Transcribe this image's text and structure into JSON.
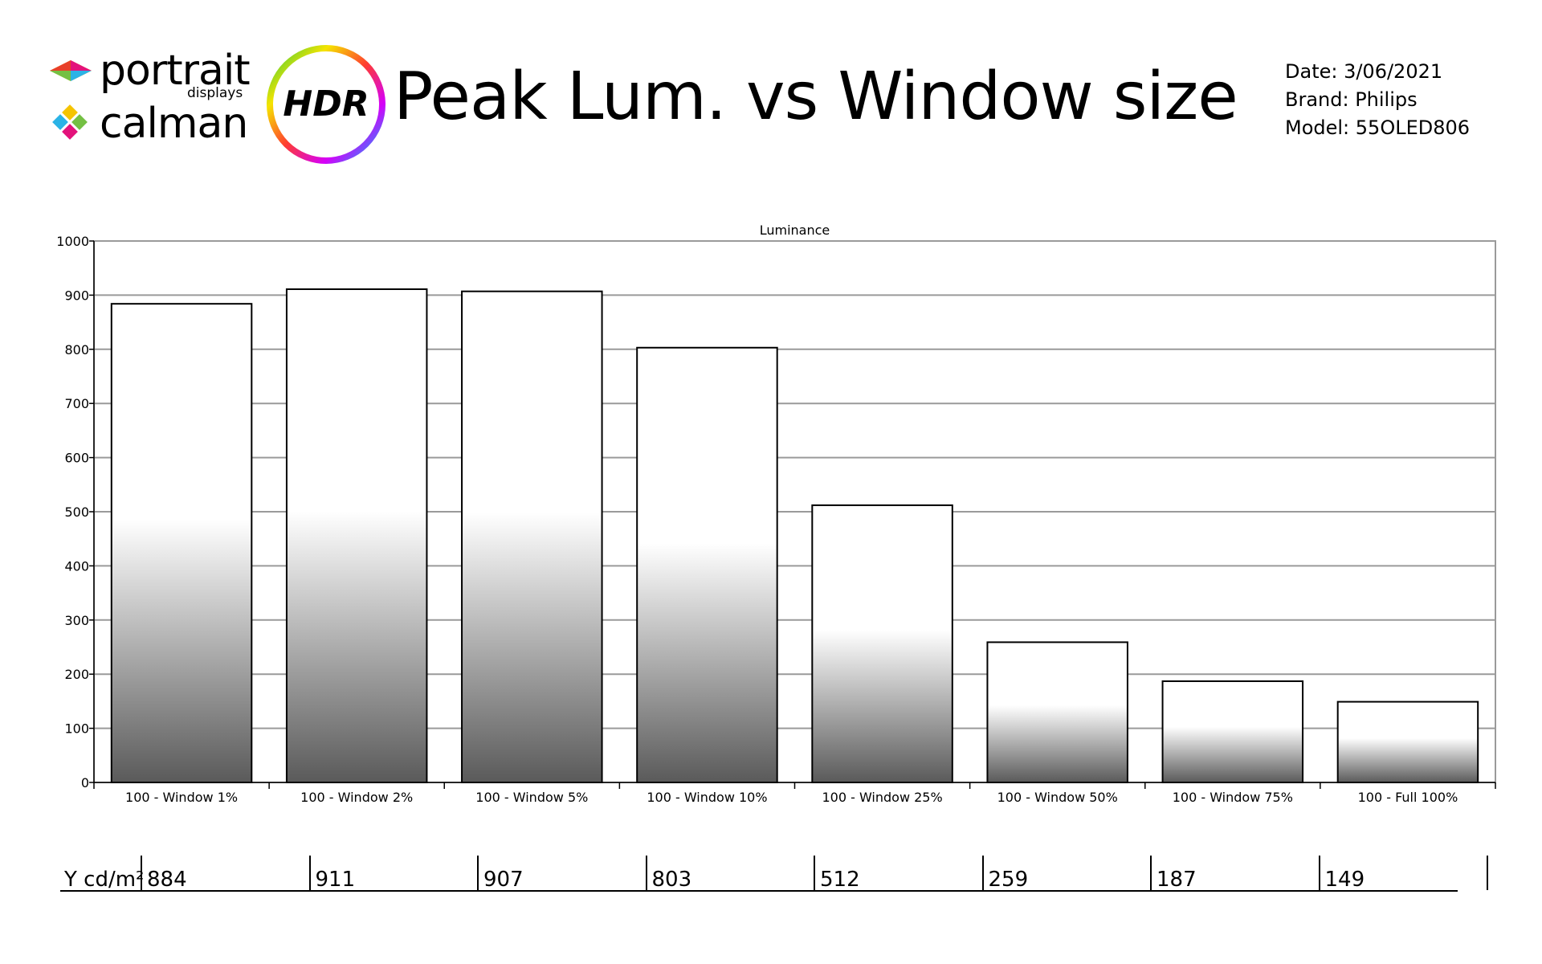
{
  "brand": {
    "portrait_word": "portrait",
    "portrait_sub": "displays",
    "calman_word": "calman",
    "hdr_badge": "HDR"
  },
  "header": {
    "title": "Peak Lum. vs Window size",
    "date": "Date: 3/06/2021",
    "brand": "Brand: Philips",
    "model": "Model: 55OLED806"
  },
  "chart_data": {
    "type": "bar",
    "title": "Luminance",
    "xlabel": "",
    "ylabel": "",
    "ylim": [
      0,
      1000
    ],
    "yticks": [
      0,
      100,
      200,
      300,
      400,
      500,
      600,
      700,
      800,
      900,
      1000
    ],
    "grid": true,
    "categories": [
      "100 - Window  1%",
      "100 - Window  2%",
      "100 - Window  5%",
      "100 - Window 10%",
      "100 - Window 25%",
      "100 - Window 50%",
      "100 - Window 75%",
      "100 - Full  100%"
    ],
    "values": [
      884,
      911,
      907,
      803,
      512,
      259,
      187,
      149
    ]
  },
  "table": {
    "row_label": "Y cd/m²",
    "values": [
      "884",
      "911",
      "907",
      "803",
      "512",
      "259",
      "187",
      "149"
    ]
  },
  "colors": {
    "grid": "#9a9a9a",
    "bar_top": "#ffffff",
    "bar_bottom": "#5a5a5a",
    "bar_stroke": "#000000"
  }
}
